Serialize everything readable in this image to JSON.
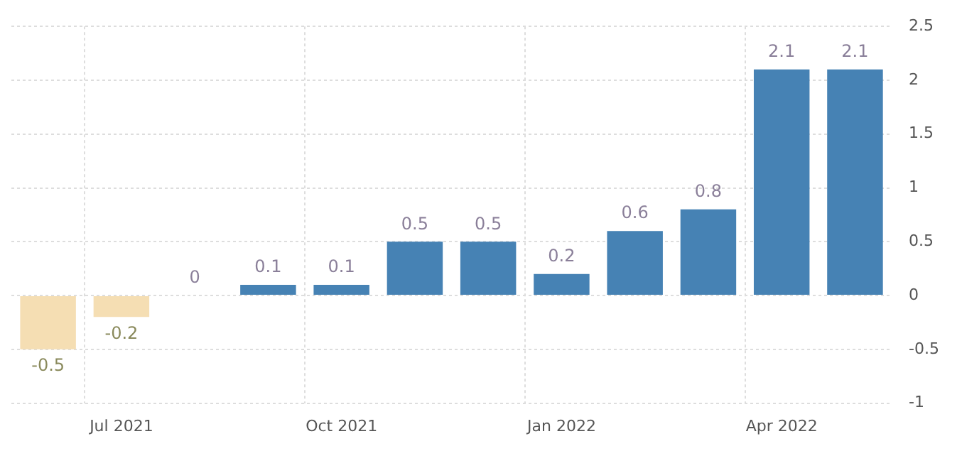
{
  "chart_data": {
    "type": "bar",
    "categories": [
      null,
      "Jul 2021",
      null,
      null,
      "Oct 2021",
      null,
      null,
      "Jan 2022",
      null,
      null,
      "Apr 2022",
      null
    ],
    "values": [
      -0.5,
      -0.2,
      0,
      0.1,
      0.1,
      0.5,
      0.5,
      0.2,
      0.6,
      0.8,
      2.1,
      2.1
    ],
    "colors": [
      "#f5deb3",
      "#f5deb3",
      "#4682b4",
      "#4682b4",
      "#4682b4",
      "#4682b4",
      "#4682b4",
      "#4682b4",
      "#4682b4",
      "#4682b4",
      "#4682b4",
      "#4682b4"
    ],
    "ylim": [
      -1,
      2.5
    ],
    "yticks": [
      -1,
      -0.5,
      0,
      0.5,
      1,
      1.5,
      2,
      2.5
    ],
    "grid": true,
    "data_labels": true,
    "legend": false
  }
}
